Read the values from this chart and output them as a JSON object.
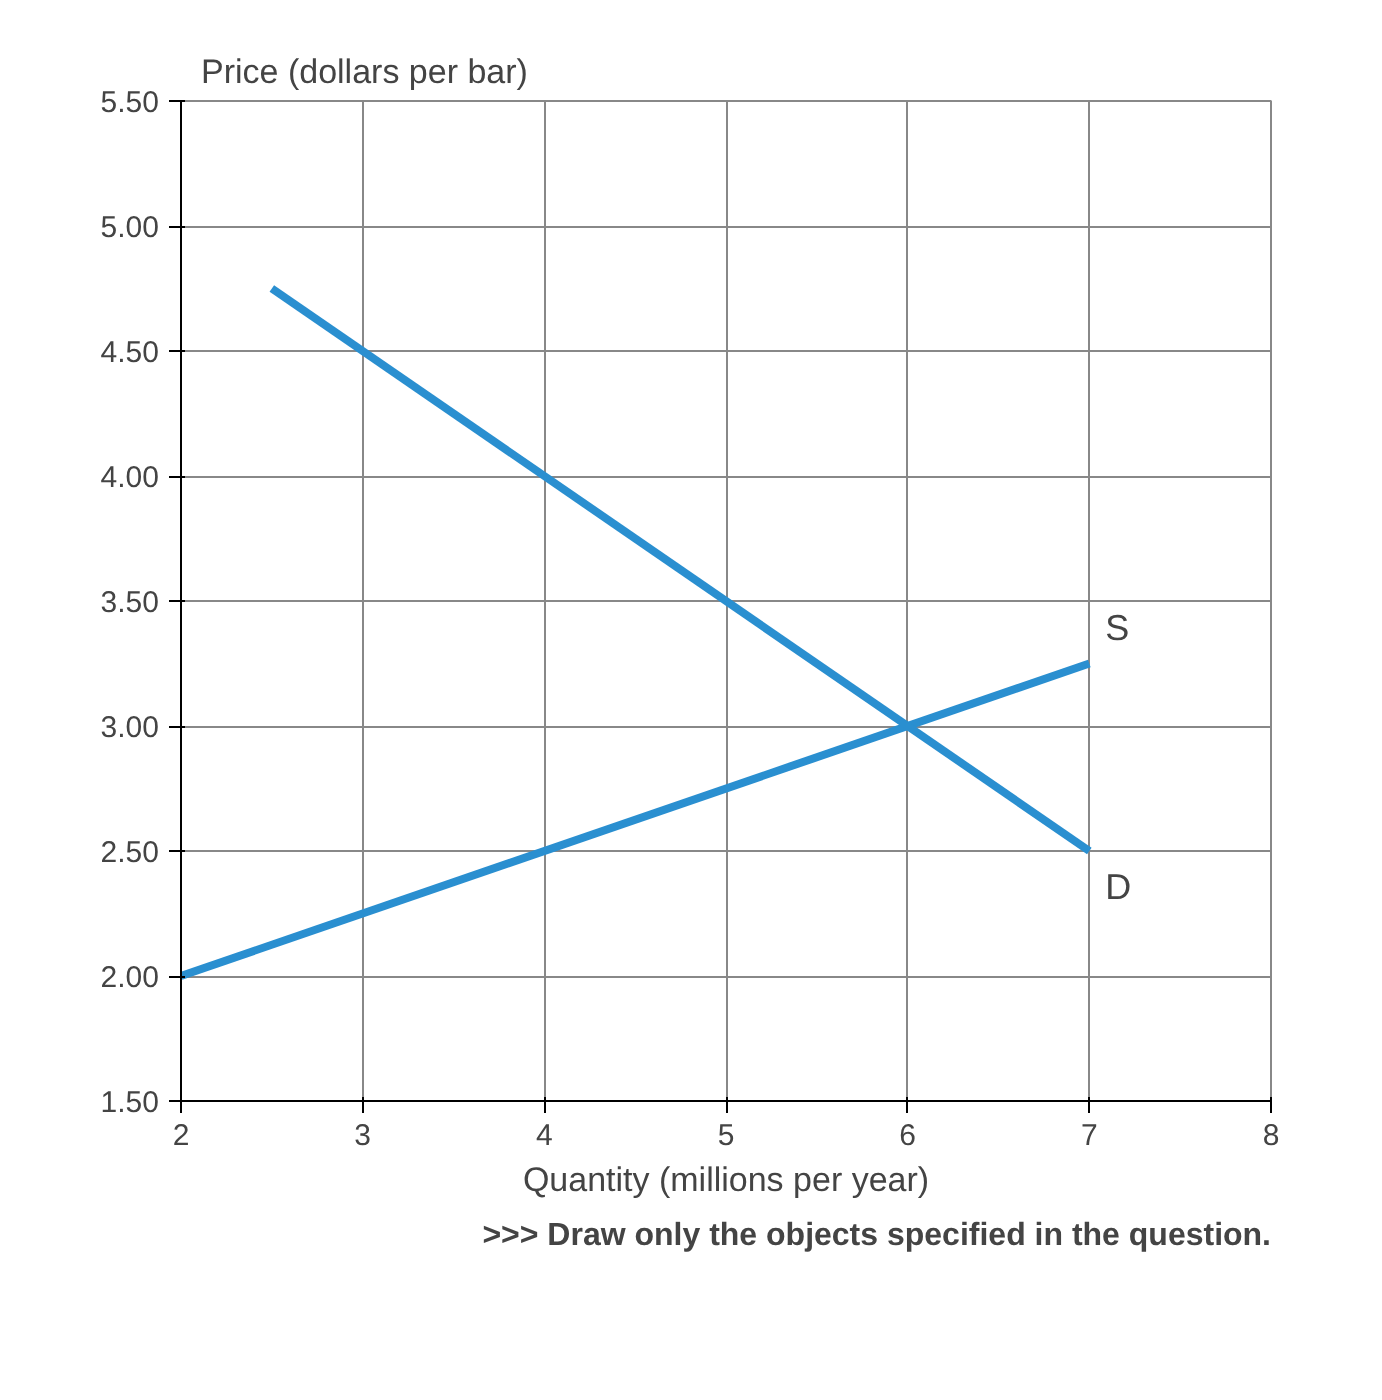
{
  "chart_data": {
    "type": "line",
    "ylabel": "Price (dollars per bar)",
    "xlabel": "Quantity (millions per year)",
    "series": [
      {
        "name": "S",
        "color": "#2a8fd0",
        "x": [
          2,
          7
        ],
        "values": [
          2.0,
          3.25
        ]
      },
      {
        "name": "D",
        "color": "#2a8fd0",
        "x": [
          2.5,
          7
        ],
        "values": [
          4.75,
          2.5
        ]
      }
    ],
    "xlim": [
      2,
      8
    ],
    "xticks": [
      2,
      3,
      4,
      5,
      6,
      7,
      8
    ],
    "ylim": [
      1.5,
      5.5
    ],
    "yticks": [
      {
        "value": 1.5,
        "label": "1.50"
      },
      {
        "value": 2.0,
        "label": "2.00"
      },
      {
        "value": 2.5,
        "label": "2.50"
      },
      {
        "value": 3.0,
        "label": "3.00"
      },
      {
        "value": 3.5,
        "label": "3.50"
      },
      {
        "value": 4.0,
        "label": "4.00"
      },
      {
        "value": 4.5,
        "label": "4.50"
      },
      {
        "value": 5.0,
        "label": "5.00"
      },
      {
        "value": 5.5,
        "label": "5.50"
      }
    ],
    "grid": true,
    "marker": "none",
    "line_style": "solid",
    "annotations": [
      ">>> Draw only the objects specified in the question."
    ]
  }
}
